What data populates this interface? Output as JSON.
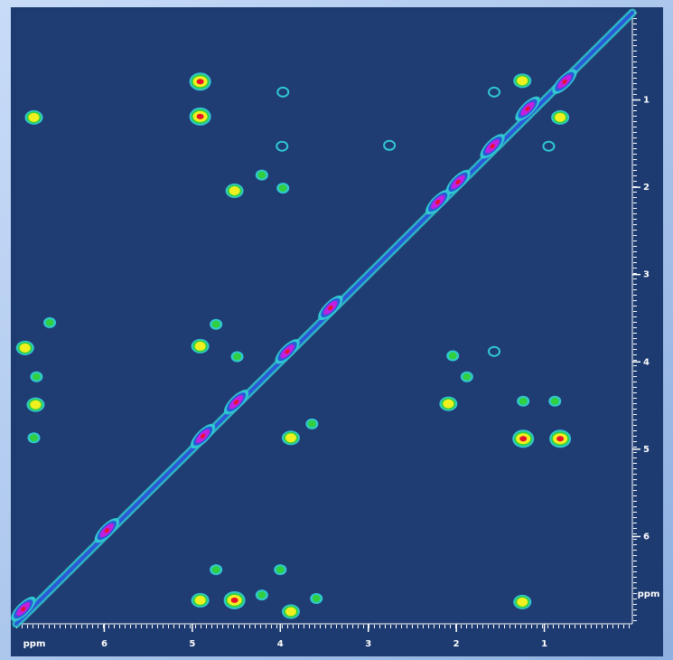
{
  "chart_data": {
    "type": "contour",
    "x_label": "ppm",
    "y_label": "ppm",
    "xlim": [
      7.0,
      0.0
    ],
    "ylim": [
      0.0,
      7.0
    ],
    "xticks": [
      6,
      5,
      4,
      3,
      2,
      1
    ],
    "yticks": [
      1,
      2,
      3,
      4,
      5,
      6
    ],
    "diagonal": true,
    "series": [
      {
        "color": "#e8102a",
        "x": [
          4.91,
          4.91,
          4.52,
          1.24,
          0.82
        ],
        "y": [
          0.79,
          1.19,
          6.73,
          4.88,
          4.88
        ]
      },
      {
        "color": "#f0f020",
        "x": [
          6.8,
          4.52,
          4.91,
          6.9,
          6.78,
          2.09,
          3.88,
          1.25,
          0.82,
          3.88,
          4.91,
          1.25
        ],
        "y": [
          1.2,
          2.04,
          3.82,
          3.84,
          4.49,
          4.48,
          4.87,
          0.78,
          1.2,
          6.86,
          6.73,
          6.75
        ]
      },
      {
        "color": "#30d040",
        "x": [
          4.21,
          3.97,
          6.62,
          4.73,
          4.49,
          6.77,
          6.8,
          3.64,
          2.04,
          1.88,
          4.73,
          4.0,
          4.21,
          3.59,
          1.24,
          0.88
        ],
        "y": [
          1.86,
          2.01,
          3.55,
          3.57,
          3.94,
          4.17,
          4.87,
          4.71,
          3.93,
          4.17,
          6.38,
          6.38,
          6.67,
          6.71,
          4.45,
          4.45
        ]
      },
      {
        "color": "#30c8d0",
        "x": [
          3.97,
          2.76,
          1.57,
          0.95,
          3.98,
          1.57
        ],
        "y": [
          0.91,
          1.52,
          0.91,
          1.53,
          1.53,
          3.88
        ]
      },
      {
        "color": "#c020e0",
        "x": [
          6.92,
          5.97,
          4.88,
          4.5,
          3.92,
          3.43,
          2.21,
          1.98,
          1.59,
          1.19,
          0.77
        ],
        "y": [
          6.83,
          5.93,
          4.85,
          4.46,
          3.88,
          3.38,
          2.17,
          1.94,
          1.53,
          1.1,
          0.79
        ]
      }
    ]
  }
}
